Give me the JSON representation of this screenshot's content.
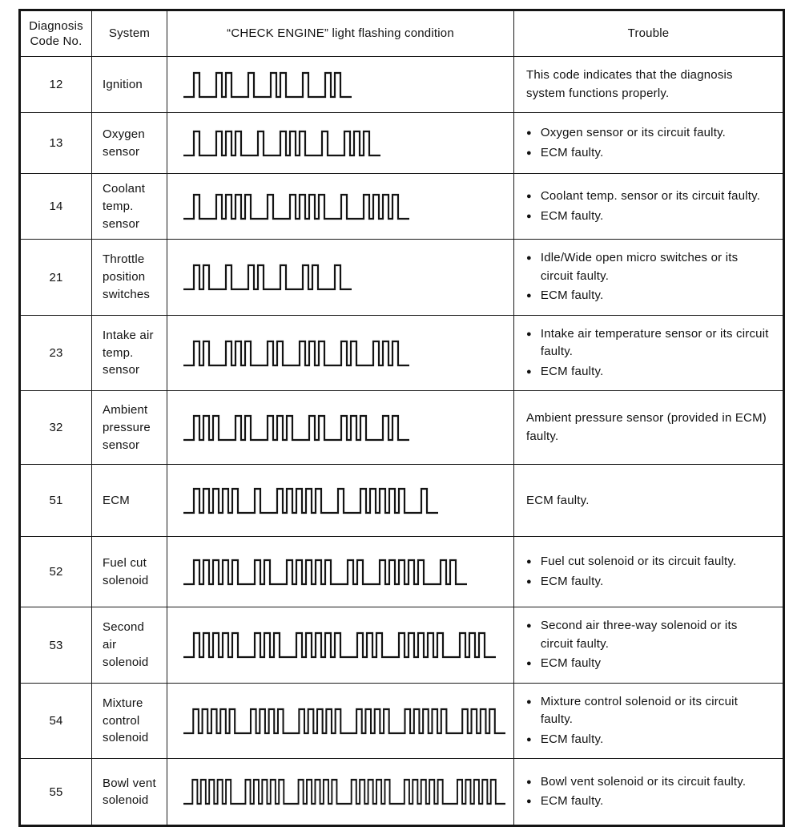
{
  "icons": {
    "bullet": "●"
  },
  "table": {
    "headers": {
      "code": "Diagnosis Code No.",
      "system": "System",
      "flashing": "“CHECK ENGINE” light flashing condition",
      "trouble": "Trouble"
    },
    "flash_repeats": 3,
    "rows": [
      {
        "code": "12",
        "system": "Ignition",
        "flash_digits": [
          1,
          2
        ],
        "trouble": [
          {
            "bullet": false,
            "text": "This code indicates that the diagnosis system functions properly."
          }
        ]
      },
      {
        "code": "13",
        "system": "Oxygen sensor",
        "flash_digits": [
          1,
          3
        ],
        "trouble": [
          {
            "bullet": true,
            "text": "Oxygen sensor or its circuit faulty."
          },
          {
            "bullet": true,
            "text": "ECM faulty."
          }
        ]
      },
      {
        "code": "14",
        "system": "Coolant temp. sensor",
        "flash_digits": [
          1,
          4
        ],
        "trouble": [
          {
            "bullet": true,
            "text": "Coolant temp. sensor or its circuit faulty."
          },
          {
            "bullet": true,
            "text": "ECM faulty."
          }
        ]
      },
      {
        "code": "21",
        "system": "Throttle position switches",
        "flash_digits": [
          2,
          1
        ],
        "trouble": [
          {
            "bullet": true,
            "text": "Idle/Wide open micro switches or its circuit faulty."
          },
          {
            "bullet": true,
            "text": "ECM faulty."
          }
        ]
      },
      {
        "code": "23",
        "system": "Intake air temp. sensor",
        "flash_digits": [
          2,
          3
        ],
        "trouble": [
          {
            "bullet": true,
            "text": "Intake air temperature sensor or its circuit faulty."
          },
          {
            "bullet": true,
            "text": "ECM faulty."
          }
        ]
      },
      {
        "code": "32",
        "system": "Ambient pressure sensor",
        "flash_digits": [
          3,
          2
        ],
        "trouble": [
          {
            "bullet": false,
            "text": "Ambient pressure sensor (provided in ECM) faulty."
          }
        ]
      },
      {
        "code": "51",
        "system": "ECM",
        "flash_digits": [
          5,
          1
        ],
        "trouble": [
          {
            "bullet": false,
            "text": "ECM faulty."
          }
        ]
      },
      {
        "code": "52",
        "system": "Fuel cut solenoid",
        "flash_digits": [
          5,
          2
        ],
        "trouble": [
          {
            "bullet": true,
            "text": "Fuel cut solenoid or its circuit faulty."
          },
          {
            "bullet": true,
            "text": "ECM faulty."
          }
        ]
      },
      {
        "code": "53",
        "system": "Second air solenoid",
        "flash_digits": [
          5,
          3
        ],
        "trouble": [
          {
            "bullet": true,
            "text": "Second air three-way solenoid or its circuit faulty."
          },
          {
            "bullet": true,
            "text": "ECM faulty"
          }
        ]
      },
      {
        "code": "54",
        "system": "Mixture control solenoid",
        "flash_digits": [
          5,
          4
        ],
        "trouble": [
          {
            "bullet": true,
            "text": "Mixture control solenoid or its circuit faulty."
          },
          {
            "bullet": true,
            "text": "ECM faulty."
          }
        ]
      },
      {
        "code": "55",
        "system": "Bowl vent solenoid",
        "flash_digits": [
          5,
          5
        ],
        "trouble": [
          {
            "bullet": true,
            "text": "Bowl vent solenoid or its circuit faulty."
          },
          {
            "bullet": true,
            "text": "ECM faulty."
          }
        ]
      }
    ]
  }
}
